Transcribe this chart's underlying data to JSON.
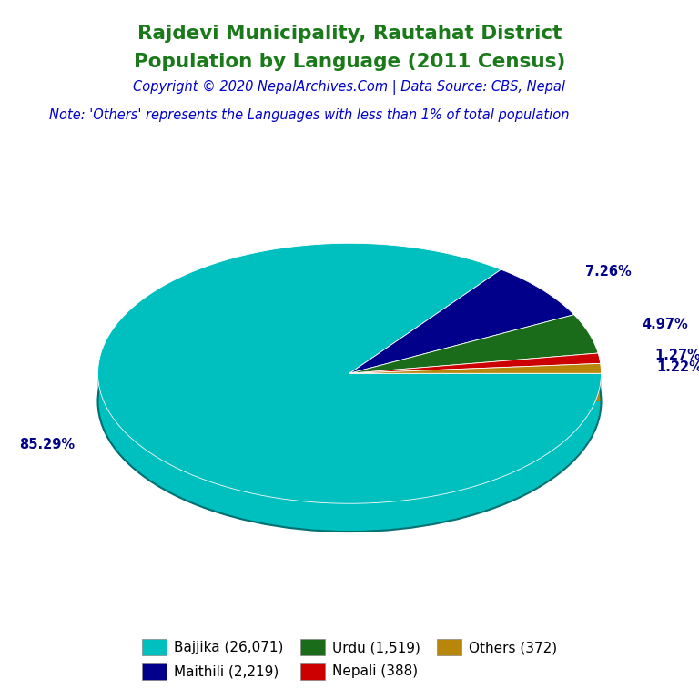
{
  "title_line1": "Rajdevi Municipality, Rautahat District",
  "title_line2": "Population by Language (2011 Census)",
  "title_color": "#1a7a1a",
  "copyright_text": "Copyright © 2020 NepalArchives.Com | Data Source: CBS, Nepal",
  "copyright_color": "#0000CC",
  "note_text": "Note: 'Others' represents the Languages with less than 1% of total population",
  "note_color": "#0000CC",
  "labels": [
    "Bajjika",
    "Maithili",
    "Urdu",
    "Nepali",
    "Others"
  ],
  "values": [
    26071,
    2219,
    1519,
    388,
    372
  ],
  "percentages": [
    85.29,
    7.26,
    4.97,
    1.27,
    1.22
  ],
  "colors": [
    "#00BFBF",
    "#00008B",
    "#1a6b1a",
    "#CC0000",
    "#B8860B"
  ],
  "legend_labels": [
    "Bajjika (26,071)",
    "Maithili (2,219)",
    "Urdu (1,519)",
    "Nepali (388)",
    "Others (372)"
  ],
  "legend_colors": [
    "#00BFBF",
    "#00008B",
    "#1a6b1a",
    "#CC0000",
    "#B8860B"
  ],
  "pct_label_color": "#00008B",
  "background_color": "#FFFFFF",
  "shadow_color": "#007070"
}
